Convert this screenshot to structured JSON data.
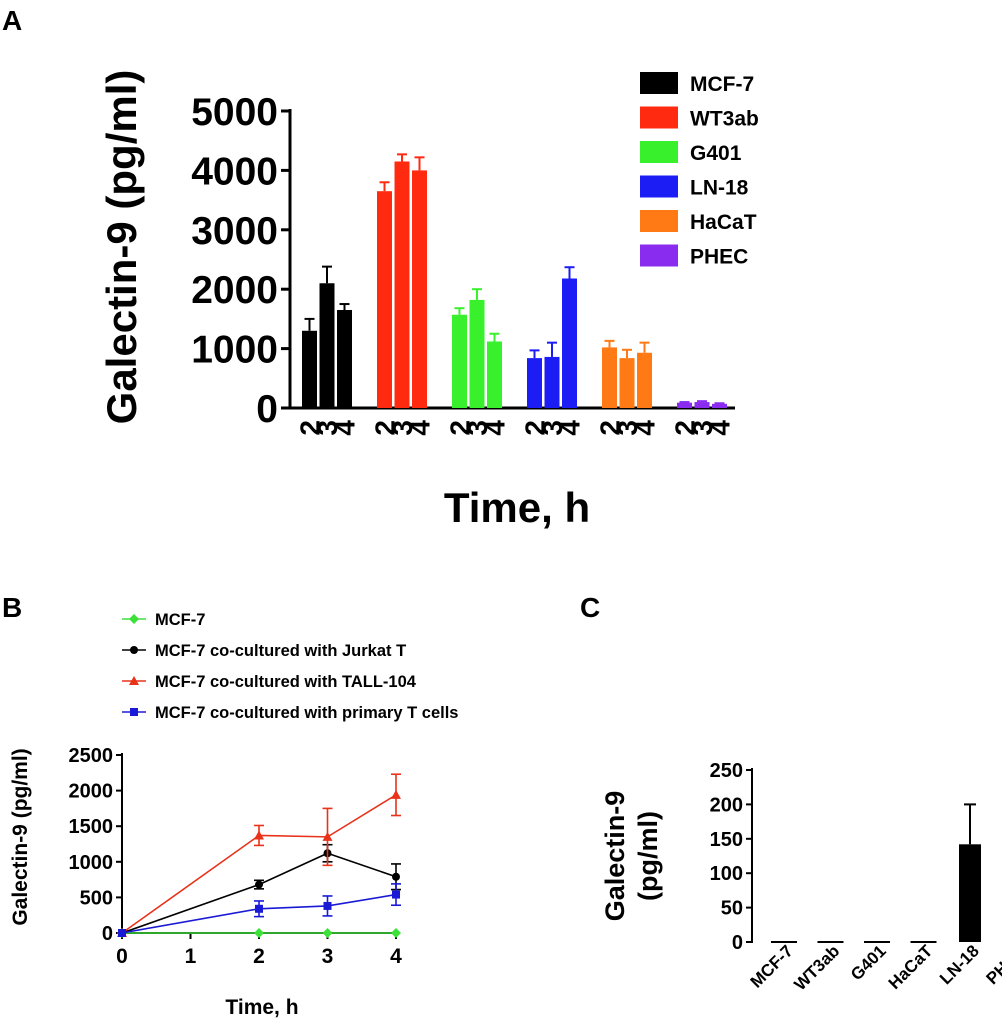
{
  "panels": {
    "a": {
      "label": "A"
    },
    "b": {
      "label": "B"
    },
    "c": {
      "label": "C"
    }
  },
  "chart_data": [
    {
      "id": "A",
      "type": "bar",
      "ylabel": "Galectin-9 (pg/ml)",
      "xlabel": "Time, h",
      "ylim": [
        0,
        5000
      ],
      "yticks": [
        0,
        1000,
        2000,
        3000,
        4000,
        5000
      ],
      "time_labels": [
        "2",
        "3",
        "4"
      ],
      "legend_position": "top-right",
      "series": [
        {
          "name": "MCF-7",
          "color": "#000000",
          "values": [
            1300,
            2100,
            1650
          ],
          "errors": [
            200,
            280,
            100
          ]
        },
        {
          "name": "WT3ab",
          "color": "#ff2a10",
          "values": [
            3650,
            4150,
            4000
          ],
          "errors": [
            150,
            120,
            220
          ]
        },
        {
          "name": "G401",
          "color": "#38f02c",
          "values": [
            1570,
            1820,
            1120
          ],
          "errors": [
            110,
            180,
            130
          ]
        },
        {
          "name": "LN-18",
          "color": "#1c1cf5",
          "values": [
            840,
            860,
            2180
          ],
          "errors": [
            130,
            240,
            190
          ]
        },
        {
          "name": "HaCaT",
          "color": "#ff7a14",
          "values": [
            1020,
            840,
            930
          ],
          "errors": [
            110,
            140,
            170
          ]
        },
        {
          "name": "PHEC",
          "color": "#8a2cf0",
          "values": [
            90,
            100,
            70
          ],
          "errors": [
            10,
            15,
            10
          ]
        }
      ]
    },
    {
      "id": "B",
      "type": "line",
      "ylabel": "Galectin-9 (pg/ml)",
      "xlabel": "Time, h",
      "xlim": [
        0,
        4
      ],
      "ylim": [
        0,
        2500
      ],
      "xticks": [
        0,
        1,
        2,
        3,
        4
      ],
      "yticks": [
        0,
        500,
        1000,
        1500,
        2000,
        2500
      ],
      "legend_position": "top",
      "series": [
        {
          "name": "MCF-7",
          "color": "#3ee03a",
          "marker": "diamond",
          "x": [
            0,
            2,
            3,
            4
          ],
          "y": [
            0,
            0,
            0,
            0
          ],
          "err": [
            0,
            0,
            0,
            0
          ]
        },
        {
          "name": "MCF-7 co-cultured with Jurkat T",
          "color": "#000000",
          "marker": "circle",
          "x": [
            0,
            2,
            3,
            4
          ],
          "y": [
            0,
            680,
            1120,
            790
          ],
          "err": [
            0,
            60,
            120,
            180
          ]
        },
        {
          "name": "MCF-7 co-cultured with TALL-104",
          "color": "#e8321a",
          "marker": "triangle",
          "x": [
            0,
            2,
            3,
            4
          ],
          "y": [
            0,
            1370,
            1350,
            1940
          ],
          "err": [
            0,
            140,
            400,
            290
          ]
        },
        {
          "name": "MCF-7 co-cultured  with primary T cells",
          "color": "#1a1ad6",
          "marker": "square",
          "x": [
            0,
            2,
            3,
            4
          ],
          "y": [
            0,
            340,
            380,
            540
          ],
          "err": [
            0,
            110,
            140,
            150
          ]
        }
      ]
    },
    {
      "id": "C",
      "type": "bar",
      "ylabel_line1": "Galectin-9",
      "ylabel_line2": "(pg/ml)",
      "ylim": [
        0,
        250
      ],
      "yticks": [
        0,
        50,
        100,
        150,
        200,
        250
      ],
      "categories": [
        "MCF-7",
        "WT3ab",
        "G401",
        "HaCaT",
        "LN-18",
        "PHEC"
      ],
      "values": [
        0,
        0,
        0,
        0,
        142,
        0
      ],
      "errors": [
        0,
        0,
        0,
        0,
        58,
        0
      ],
      "color": "#000000"
    }
  ]
}
